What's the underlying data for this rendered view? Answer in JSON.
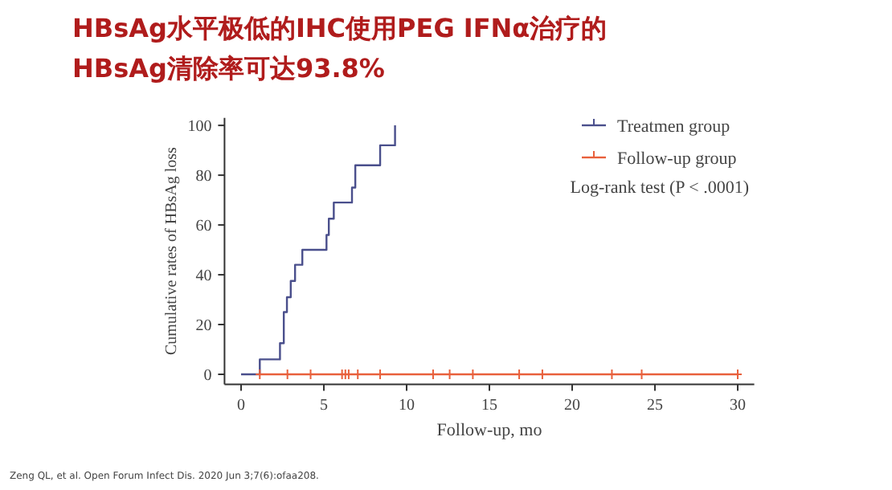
{
  "chart_data": {
    "type": "step",
    "title": "HBsAg水平极低的IHC使用PEG IFNα治疗的\nHBsAg清除率可达93.8%",
    "xlabel": "Follow-up, mo",
    "ylabel": "Cumulative rates of HBsAg loss",
    "xlim": [
      -1,
      31
    ],
    "xticks": [
      0,
      5,
      10,
      15,
      20,
      25,
      30
    ],
    "ylim": [
      -4,
      103
    ],
    "yticks": [
      0,
      20,
      40,
      60,
      80,
      100
    ],
    "grid": false,
    "legend": "top right",
    "series": [
      {
        "name": "Treatmen group",
        "color": "#4a4f8c",
        "marker": "none",
        "x": [
          0,
          1.13,
          2.35,
          2.58,
          2.77,
          3.0,
          3.26,
          3.7,
          5.16,
          5.3,
          5.6,
          6.7,
          6.9,
          8.4,
          9.3
        ],
        "values": [
          0,
          6,
          12.5,
          25,
          31,
          37.5,
          44,
          50,
          56,
          62.5,
          69,
          75,
          84,
          92,
          100
        ]
      },
      {
        "name": "Follow-up group",
        "color": "#e8603c",
        "marker": "cross",
        "x": [
          1.13,
          2.8,
          4.2,
          6.1,
          6.3,
          6.5,
          7.05,
          8.4,
          11.6,
          12.6,
          14.0,
          16.8,
          18.2,
          22.4,
          24.2,
          30.0
        ],
        "values": [
          0,
          0,
          0,
          0,
          0,
          0,
          0,
          0,
          0,
          0,
          0,
          0,
          0,
          0,
          0,
          0
        ]
      }
    ],
    "annotations": [
      "Log-rank test (P < .0001)",
      "Zeng QL, et al. Open Forum Infect Dis. 2020 Jun 3;7(6):ofaa208."
    ]
  }
}
